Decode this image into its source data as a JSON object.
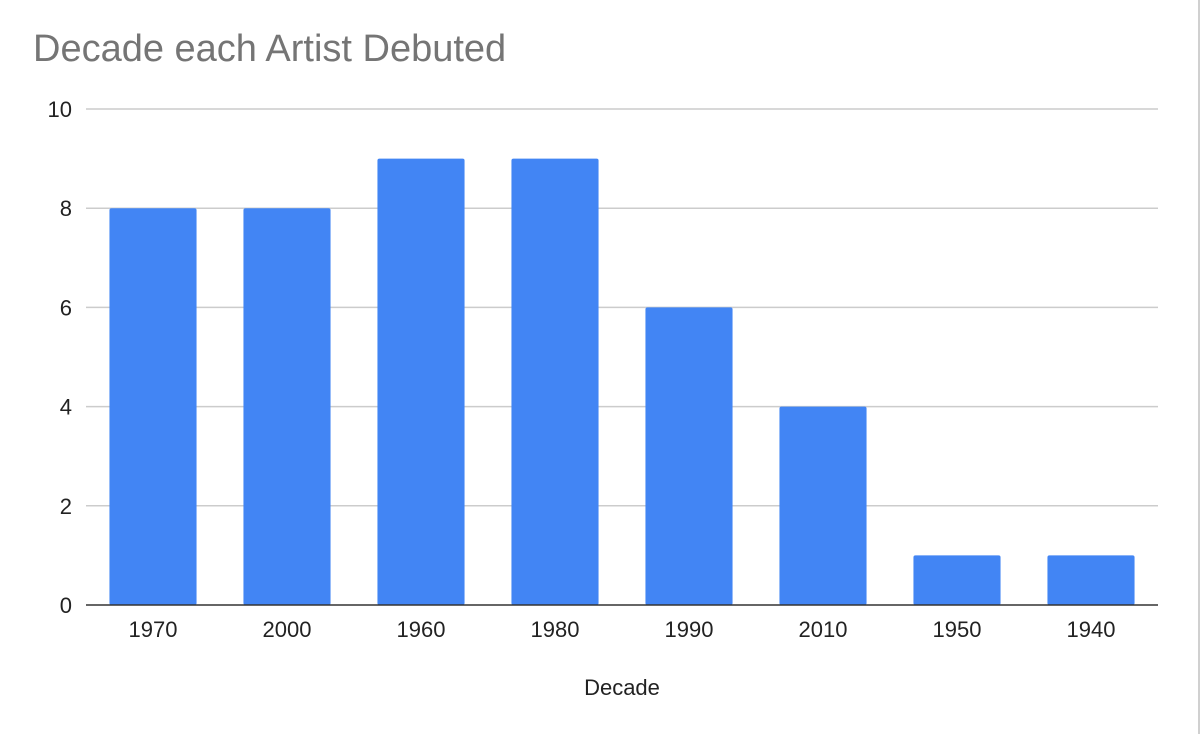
{
  "chart_data": {
    "type": "bar",
    "title": "Decade each Artist Debuted",
    "xlabel": "Decade",
    "ylabel": "",
    "categories": [
      "1970",
      "2000",
      "1960",
      "1980",
      "1990",
      "2010",
      "1950",
      "1940"
    ],
    "values": [
      8,
      8,
      9,
      9,
      6,
      4,
      1,
      1
    ],
    "ylim": [
      0,
      10
    ],
    "yticks": [
      0,
      2,
      4,
      6,
      8,
      10
    ],
    "grid": true,
    "legend": "none",
    "colors": {
      "bar": "#4285f4",
      "grid": "#cccccc",
      "baseline": "#333333",
      "title": "#757575"
    }
  }
}
